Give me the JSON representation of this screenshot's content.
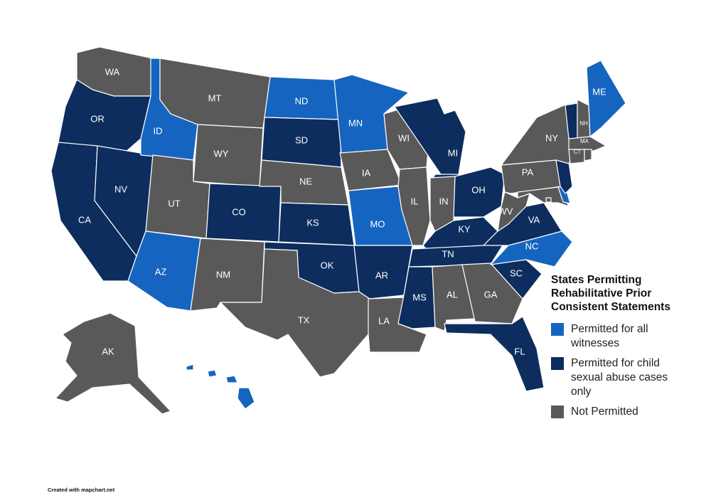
{
  "legend": {
    "title": "States Permitting\nRehabilitative Prior\nConsistent Statements",
    "items": [
      {
        "key": "all",
        "label": "Permitted for all\nwitnesses",
        "color": "#1565c0"
      },
      {
        "key": "child",
        "label": "Permitted for child\nsexual abuse cases\nonly",
        "color": "#0c2d5e"
      },
      {
        "key": "none",
        "label": "Not Permitted",
        "color": "#595959"
      }
    ]
  },
  "credit": "Created with mapchart.net",
  "states": [
    {
      "code": "WA",
      "status": "none"
    },
    {
      "code": "OR",
      "status": "child"
    },
    {
      "code": "CA",
      "status": "child"
    },
    {
      "code": "ID",
      "status": "all"
    },
    {
      "code": "NV",
      "status": "child"
    },
    {
      "code": "AZ",
      "status": "all"
    },
    {
      "code": "MT",
      "status": "none"
    },
    {
      "code": "WY",
      "status": "none"
    },
    {
      "code": "UT",
      "status": "none"
    },
    {
      "code": "CO",
      "status": "child"
    },
    {
      "code": "NM",
      "status": "none"
    },
    {
      "code": "ND",
      "status": "all"
    },
    {
      "code": "SD",
      "status": "child"
    },
    {
      "code": "NE",
      "status": "none"
    },
    {
      "code": "KS",
      "status": "child"
    },
    {
      "code": "OK",
      "status": "child"
    },
    {
      "code": "TX",
      "status": "none"
    },
    {
      "code": "MN",
      "status": "all"
    },
    {
      "code": "IA",
      "status": "none"
    },
    {
      "code": "MO",
      "status": "all"
    },
    {
      "code": "AR",
      "status": "child"
    },
    {
      "code": "LA",
      "status": "none"
    },
    {
      "code": "WI",
      "status": "none"
    },
    {
      "code": "IL",
      "status": "none"
    },
    {
      "code": "MI",
      "status": "child"
    },
    {
      "code": "IN",
      "status": "none"
    },
    {
      "code": "OH",
      "status": "child"
    },
    {
      "code": "KY",
      "status": "child"
    },
    {
      "code": "TN",
      "status": "child"
    },
    {
      "code": "MS",
      "status": "child"
    },
    {
      "code": "AL",
      "status": "none"
    },
    {
      "code": "GA",
      "status": "none"
    },
    {
      "code": "FL",
      "status": "child"
    },
    {
      "code": "SC",
      "status": "child"
    },
    {
      "code": "NC",
      "status": "all"
    },
    {
      "code": "VA",
      "status": "child"
    },
    {
      "code": "WV",
      "status": "none"
    },
    {
      "code": "PA",
      "status": "none"
    },
    {
      "code": "NY",
      "status": "none"
    },
    {
      "code": "VT",
      "status": "child"
    },
    {
      "code": "NH",
      "status": "none"
    },
    {
      "code": "ME",
      "status": "all"
    },
    {
      "code": "MA",
      "status": "none"
    },
    {
      "code": "CT",
      "status": "none"
    },
    {
      "code": "RI",
      "status": "none"
    },
    {
      "code": "NJ",
      "status": "child"
    },
    {
      "code": "DE",
      "status": "all"
    },
    {
      "code": "MD",
      "status": "none"
    },
    {
      "code": "DC",
      "status": "none"
    },
    {
      "code": "AK",
      "status": "none"
    },
    {
      "code": "HI",
      "status": "all"
    }
  ]
}
